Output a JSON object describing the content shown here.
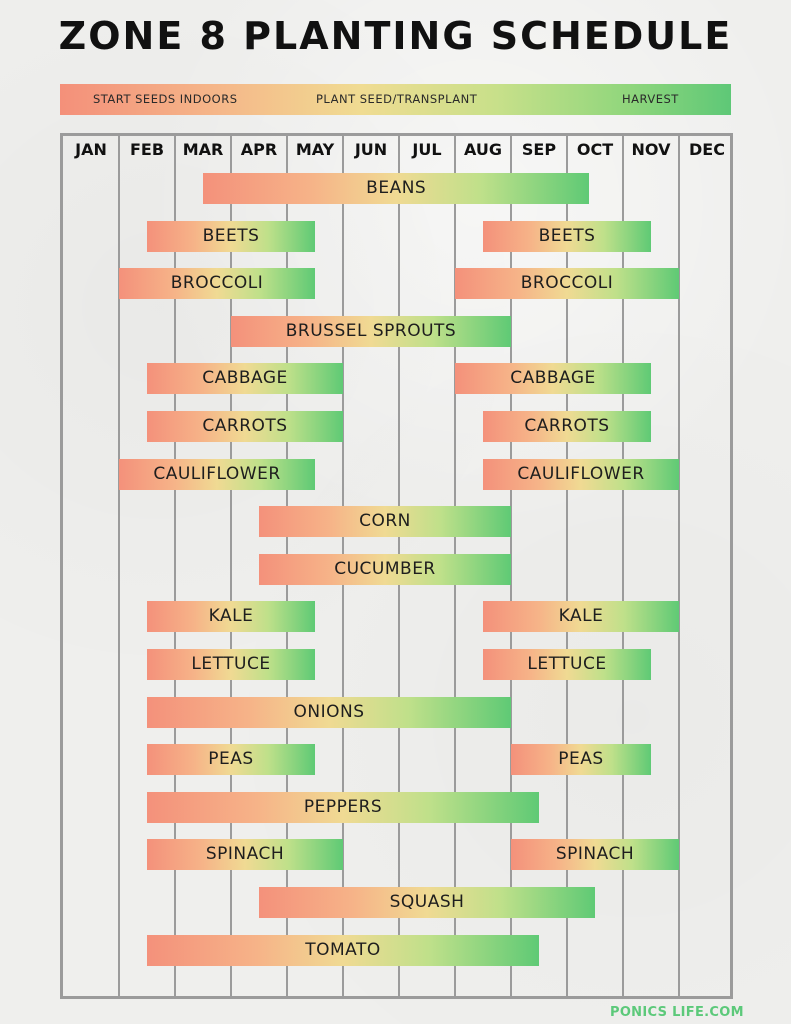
{
  "title": "ZONE 8 PLANTING SCHEDULE",
  "legend": {
    "start": "START SEEDS INDOORS",
    "plant": "PLANT SEED/TRANSPLANT",
    "harvest": "HARVEST"
  },
  "colors": {
    "start": "#f4917b",
    "middle": "#f0da93",
    "harvest": "#5fca75",
    "grid": "#9b9b9b"
  },
  "chart_data": {
    "type": "gantt",
    "title": "ZONE 8 PLANTING SCHEDULE",
    "months": [
      "JAN",
      "FEB",
      "MAR",
      "APR",
      "MAY",
      "JUN",
      "JUL",
      "AUG",
      "SEP",
      "OCT",
      "NOV",
      "DEC"
    ],
    "units": "month index, 0 = start of JAN, 12 = end of DEC",
    "bars": [
      {
        "label": "BEANS",
        "start": 2.5,
        "end": 9.4
      },
      {
        "label": "BEETS",
        "start": 1.5,
        "end": 4.5
      },
      {
        "label": "BEETS",
        "start": 7.5,
        "end": 10.5
      },
      {
        "label": "BROCCOLI",
        "start": 1.0,
        "end": 4.5
      },
      {
        "label": "BROCCOLI",
        "start": 7.0,
        "end": 11.0
      },
      {
        "label": "BRUSSEL SPROUTS",
        "start": 3.0,
        "end": 8.0
      },
      {
        "label": "CABBAGE",
        "start": 1.5,
        "end": 5.0
      },
      {
        "label": "CABBAGE",
        "start": 7.0,
        "end": 10.5
      },
      {
        "label": "CARROTS",
        "start": 1.5,
        "end": 5.0
      },
      {
        "label": "CARROTS",
        "start": 7.5,
        "end": 10.5
      },
      {
        "label": "CAULIFLOWER",
        "start": 1.0,
        "end": 4.5
      },
      {
        "label": "CAULIFLOWER",
        "start": 7.5,
        "end": 11.0
      },
      {
        "label": "CORN",
        "start": 3.5,
        "end": 8.0
      },
      {
        "label": "CUCUMBER",
        "start": 3.5,
        "end": 8.0
      },
      {
        "label": "KALE",
        "start": 1.5,
        "end": 4.5
      },
      {
        "label": "KALE",
        "start": 7.5,
        "end": 11.0
      },
      {
        "label": "LETTUCE",
        "start": 1.5,
        "end": 4.5
      },
      {
        "label": "LETTUCE",
        "start": 7.5,
        "end": 10.5
      },
      {
        "label": "ONIONS",
        "start": 1.5,
        "end": 8.0
      },
      {
        "label": "PEAS",
        "start": 1.5,
        "end": 4.5
      },
      {
        "label": "PEAS",
        "start": 8.0,
        "end": 10.5
      },
      {
        "label": "PEPPERS",
        "start": 1.5,
        "end": 8.5
      },
      {
        "label": "SPINACH",
        "start": 1.5,
        "end": 5.0
      },
      {
        "label": "SPINACH",
        "start": 8.0,
        "end": 11.0
      },
      {
        "label": "SQUASH",
        "start": 3.5,
        "end": 9.5
      },
      {
        "label": "TOMATO",
        "start": 1.5,
        "end": 8.5
      }
    ]
  },
  "footer": {
    "brand": "PONICS",
    "brand2": "LIFE",
    "brand3": ".COM"
  }
}
